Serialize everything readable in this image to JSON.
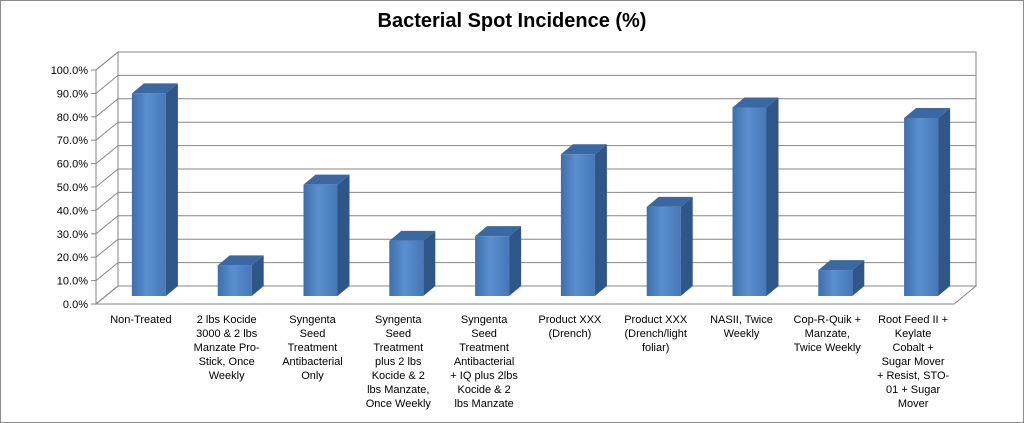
{
  "chart_data": {
    "type": "bar",
    "title": "Bacterial Spot Incidence (%)",
    "xlabel": "",
    "ylabel": "",
    "ylim": [
      0,
      100
    ],
    "y_ticks": [
      "0.0%",
      "10.0%",
      "20.0%",
      "30.0%",
      "40.0%",
      "50.0%",
      "60.0%",
      "70.0%",
      "80.0%",
      "90.0%",
      "100.0%"
    ],
    "grid": true,
    "legend": "none",
    "bar_color": "#4F81BD",
    "categories": [
      "Non-Treated",
      "2 lbs Kocide 3000 & 2 lbs Manzate Pro-Stick, Once Weekly",
      "Syngenta Seed Treatment Antibacterial Only",
      "Syngenta Seed Treatment plus 2 lbs Kocide & 2 lbs Manzate, Once Weekly",
      "Syngenta Seed Treatment Antibacterial + IQ plus 2lbs Kocide & 2 lbs Manzate",
      "Product XXX (Drench)",
      "Product XXX (Drench/light foliar)",
      "NASII, Twice Weekly",
      "Cop-R-Quik + Manzate, Twice Weekly",
      "Root Feed II + Keylate Cobalt + Sugar Mover + Resist, STO-01 + Sugar Mover"
    ],
    "category_lines": [
      [
        "Non-Treated"
      ],
      [
        "2 lbs Kocide",
        "3000 & 2 lbs",
        "Manzate Pro-",
        "Stick, Once",
        "Weekly"
      ],
      [
        "Syngenta",
        "Seed",
        "Treatment",
        "Antibacterial",
        "Only"
      ],
      [
        "Syngenta",
        "Seed",
        "Treatment",
        "plus 2 lbs",
        "Kocide & 2",
        "lbs Manzate,",
        "Once Weekly"
      ],
      [
        "Syngenta",
        "Seed",
        "Treatment",
        "Antibacterial",
        "+ IQ plus 2lbs",
        "Kocide & 2",
        "lbs Manzate"
      ],
      [
        "Product XXX",
        "(Drench)"
      ],
      [
        "Product XXX",
        "(Drench/light",
        "foliar)"
      ],
      [
        "NASII, Twice",
        "Weekly"
      ],
      [
        "Cop-R-Quik +",
        "Manzate,",
        "Twice Weekly"
      ],
      [
        "Root Feed II +",
        "Keylate",
        "Cobalt +",
        "Sugar Mover",
        "+ Resist, STO-",
        "01 + Sugar",
        "Mover"
      ]
    ],
    "values": [
      90,
      16.5,
      51,
      27,
      29,
      64,
      41.5,
      84,
      14.5,
      79.5
    ]
  }
}
